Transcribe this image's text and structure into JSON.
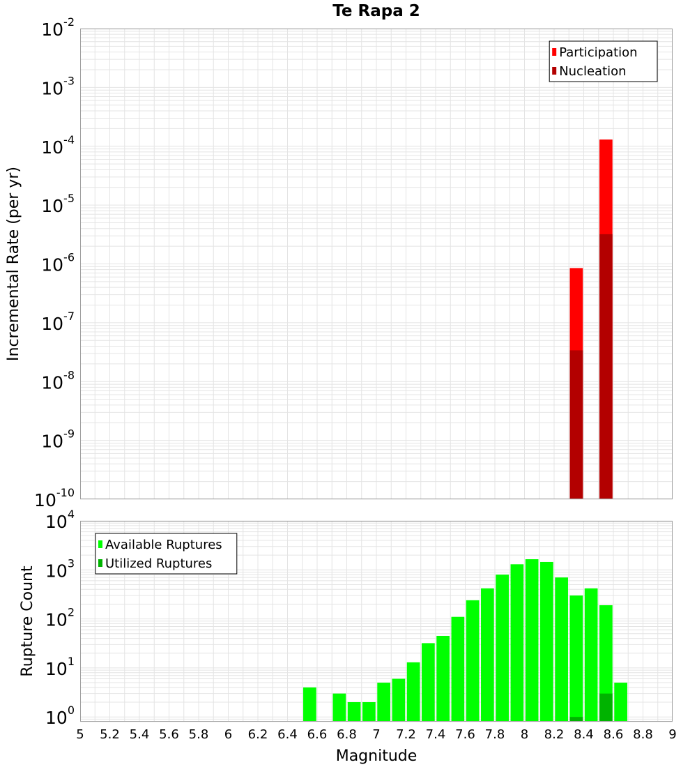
{
  "chart_data": [
    {
      "type": "bar",
      "title": "Te Rapa 2",
      "xlabel": "",
      "ylabel": "Incremental Rate (per yr)",
      "yscale": "log",
      "xlim": [
        5,
        9
      ],
      "ylim": [
        1e-10,
        0.01
      ],
      "y_ticks": [
        {
          "base": "10",
          "exp": "-2",
          "value": 0.01
        },
        {
          "base": "10",
          "exp": "-3",
          "value": 0.001
        },
        {
          "base": "10",
          "exp": "-4",
          "value": 0.0001
        },
        {
          "base": "10",
          "exp": "-5",
          "value": 1e-05
        },
        {
          "base": "10",
          "exp": "-6",
          "value": 1e-06
        },
        {
          "base": "10",
          "exp": "-7",
          "value": 1e-07
        },
        {
          "base": "10",
          "exp": "-8",
          "value": 1e-08
        },
        {
          "base": "10",
          "exp": "-9",
          "value": 1e-09
        },
        {
          "base": "10",
          "exp": "-10",
          "value": 1e-10
        }
      ],
      "legend_position": "top-right",
      "series": [
        {
          "name": "Participation",
          "color": "#ff0000",
          "x": [
            8.35,
            8.55
          ],
          "values": [
            8.5e-07,
            0.00013
          ]
        },
        {
          "name": "Nucleation",
          "color": "#b30000",
          "x": [
            8.35,
            8.55
          ],
          "values": [
            3.4e-08,
            3.2e-06
          ]
        }
      ]
    },
    {
      "type": "bar",
      "title": "",
      "xlabel": "Magnitude",
      "ylabel": "Rupture Count",
      "yscale": "log",
      "xlim": [
        5,
        9
      ],
      "ylim": [
        0.8,
        10000
      ],
      "y_ticks": [
        {
          "base": "10",
          "exp": "4",
          "value": 10000
        },
        {
          "base": "10",
          "exp": "3",
          "value": 1000
        },
        {
          "base": "10",
          "exp": "2",
          "value": 100
        },
        {
          "base": "10",
          "exp": "1",
          "value": 10
        },
        {
          "base": "10",
          "exp": "0",
          "value": 1
        }
      ],
      "x_ticks": [
        "5",
        "5.2",
        "5.4",
        "5.6",
        "5.8",
        "6",
        "6.2",
        "6.4",
        "6.6",
        "6.8",
        "7",
        "7.2",
        "7.4",
        "7.6",
        "7.8",
        "8",
        "8.2",
        "8.4",
        "8.6",
        "8.8",
        "9"
      ],
      "legend_position": "top-left",
      "series": [
        {
          "name": "Available Ruptures",
          "color": "#00ff00",
          "x": [
            6.55,
            6.75,
            6.85,
            6.95,
            7.05,
            7.15,
            7.25,
            7.35,
            7.45,
            7.55,
            7.65,
            7.75,
            7.85,
            7.95,
            8.05,
            8.15,
            8.25,
            8.35,
            8.45,
            8.55,
            8.65
          ],
          "values": [
            4,
            3,
            2,
            2,
            5,
            6,
            13,
            32,
            45,
            110,
            240,
            420,
            800,
            1300,
            1650,
            1450,
            700,
            300,
            420,
            190,
            5
          ]
        },
        {
          "name": "Utilized Ruptures",
          "color": "#00b300",
          "x": [
            8.35,
            8.55
          ],
          "values": [
            1,
            3
          ]
        }
      ]
    }
  ]
}
